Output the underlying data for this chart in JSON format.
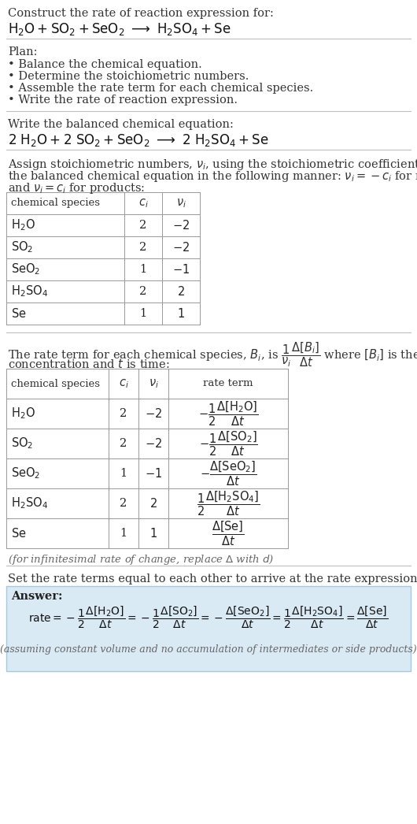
{
  "bg_color": "#ffffff",
  "text_color": "#333333",
  "gray_text": "#666666",
  "light_blue_bg": "#daeaf4",
  "light_blue_border": "#a8c8dc",
  "table_border": "#aaaaaa",
  "title_line1": "Construct the rate of reaction expression for:",
  "plan_header": "Plan:",
  "plan_items": [
    "• Balance the chemical equation.",
    "• Determine the stoichiometric numbers.",
    "• Assemble the rate term for each chemical species.",
    "• Write the rate of reaction expression."
  ],
  "balanced_header": "Write the balanced chemical equation:",
  "set_equal_text": "Set the rate terms equal to each other to arrive at the rate expression:",
  "answer_label": "Answer:",
  "answer_note": "(assuming constant volume and no accumulation of intermediates or side products)",
  "infinitesimal_note": "(for infinitesimal rate of change, replace Δ with d)"
}
